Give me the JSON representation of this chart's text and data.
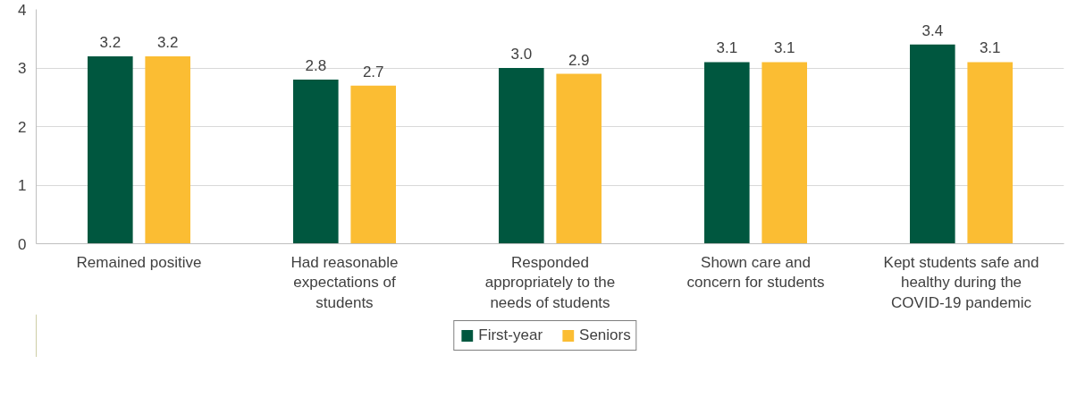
{
  "chart_data": {
    "type": "bar",
    "categories": [
      "Remained positive",
      "Had reasonable\nexpectations of\nstudents",
      "Responded\nappropriately to the\nneeds of students",
      "Shown care and\nconcern for students",
      "Kept students safe and\nhealthy during the\nCOVID-19 pandemic"
    ],
    "series": [
      {
        "name": "First-year",
        "color": "#00573f",
        "values": [
          3.2,
          2.8,
          3.0,
          3.1,
          3.4
        ]
      },
      {
        "name": "Seniors",
        "color": "#fbbd33",
        "values": [
          3.2,
          2.7,
          2.9,
          3.1,
          3.1
        ]
      }
    ],
    "value_labels": [
      [
        "3.2",
        "2.8",
        "3.0",
        "3.1",
        "3.4"
      ],
      [
        "3.2",
        "2.7",
        "2.9",
        "3.1",
        "3.1"
      ]
    ],
    "ylim": [
      0,
      4
    ],
    "yticks": [
      0,
      1,
      2,
      3,
      4
    ],
    "grid": "y",
    "legend": "bottom"
  }
}
